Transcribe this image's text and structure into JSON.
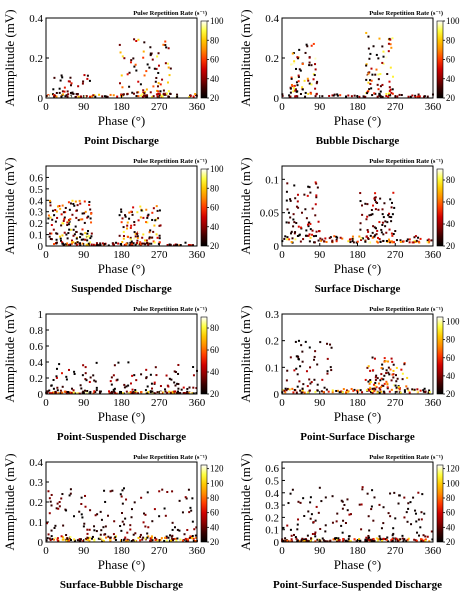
{
  "figure": {
    "colorbar_caption": "Pulse Repetition Rate (s⁻¹)",
    "colormap": [
      "#000000",
      "#3a0000",
      "#8c0000",
      "#d00000",
      "#ff3a00",
      "#ff8a00",
      "#ffc800",
      "#ffff40",
      "#ffffff"
    ]
  },
  "chart_data": [
    {
      "type": "scatter",
      "title": "Point Discharge",
      "xlabel": "Phase (°)",
      "ylabel": "Ammplitude (mV)",
      "xlim": [
        0,
        360
      ],
      "ylim": [
        0,
        0.4
      ],
      "xticks": [
        0,
        90,
        180,
        270,
        360
      ],
      "yticks": [
        0,
        0.2,
        0.4
      ],
      "ytick_labels": [
        "0",
        "0.2",
        "0.4"
      ],
      "colorbar": {
        "label": "Pulse Repetition Rate (s⁻¹)",
        "min": 20,
        "ticks": [
          20,
          40,
          60,
          80,
          100
        ],
        "max": 100
      },
      "clusters": [
        {
          "phase": [
            0,
            360
          ],
          "amplitude": [
            0.005,
            0.02
          ],
          "points": 90,
          "rate": [
            20,
            100
          ]
        },
        {
          "phase": [
            15,
            110
          ],
          "amplitude": [
            0.02,
            0.12
          ],
          "points": 30,
          "rate": [
            20,
            60
          ]
        },
        {
          "phase": [
            175,
            300
          ],
          "amplitude": [
            0.02,
            0.3
          ],
          "points": 85,
          "rate": [
            20,
            100
          ]
        }
      ]
    },
    {
      "type": "scatter",
      "title": "Bubble Discharge",
      "xlabel": "Phase (°)",
      "ylabel": "Ammplitude (mV)",
      "xlim": [
        0,
        360
      ],
      "ylim": [
        0,
        0.4
      ],
      "xticks": [
        0,
        90,
        180,
        270,
        360
      ],
      "yticks": [
        0,
        0.2,
        0.4
      ],
      "ytick_labels": [
        "0",
        "0.2",
        "0.4"
      ],
      "colorbar": {
        "label": "Pulse Repetition Rate (s⁻¹)",
        "min": 20,
        "ticks": [
          20,
          40,
          60,
          80,
          100
        ],
        "max": 100
      },
      "clusters": [
        {
          "phase": [
            0,
            360
          ],
          "amplitude": [
            0.005,
            0.02
          ],
          "points": 60,
          "rate": [
            20,
            60
          ]
        },
        {
          "phase": [
            20,
            85
          ],
          "amplitude": [
            0.02,
            0.28
          ],
          "points": 70,
          "rate": [
            20,
            100
          ]
        },
        {
          "phase": [
            200,
            265
          ],
          "amplitude": [
            0.02,
            0.33
          ],
          "points": 70,
          "rate": [
            20,
            100
          ]
        }
      ]
    },
    {
      "type": "scatter",
      "title": "Suspended Discharge",
      "xlabel": "Phase (°)",
      "ylabel": "Ammplitude (mV)",
      "xlim": [
        0,
        360
      ],
      "ylim": [
        0,
        0.7
      ],
      "xticks": [
        0,
        90,
        180,
        270,
        360
      ],
      "yticks": [
        0,
        0.1,
        0.2,
        0.3,
        0.4,
        0.5,
        0.6
      ],
      "ytick_labels": [
        "0",
        "0.1",
        "0.2",
        "0.3",
        "0.4",
        "0.5",
        "0.6"
      ],
      "colorbar": {
        "label": "Pulse Repetition Rate (s⁻¹)",
        "min": 20,
        "ticks": [
          20,
          40,
          60,
          80,
          100
        ],
        "max": 100
      },
      "clusters": [
        {
          "phase": [
            0,
            360
          ],
          "amplitude": [
            0.005,
            0.03
          ],
          "points": 80,
          "rate": [
            20,
            80
          ]
        },
        {
          "phase": [
            5,
            110
          ],
          "amplitude": [
            0.02,
            0.4
          ],
          "points": 130,
          "rate": [
            20,
            100
          ]
        },
        {
          "phase": [
            175,
            275
          ],
          "amplitude": [
            0.02,
            0.35
          ],
          "points": 100,
          "rate": [
            20,
            100
          ]
        }
      ]
    },
    {
      "type": "scatter",
      "title": "Surface Discharge",
      "xlabel": "Phase (°)",
      "ylabel": "Ammplitude (mV)",
      "xlim": [
        0,
        360
      ],
      "ylim": [
        0,
        0.12
      ],
      "xticks": [
        0,
        90,
        180,
        270,
        360
      ],
      "yticks": [
        0,
        0.05,
        0.1
      ],
      "ytick_labels": [
        "0",
        "0.05",
        "0.1"
      ],
      "colorbar": {
        "label": "Pulse Repetition Rate (s⁻¹)",
        "min": 20,
        "ticks": [
          20,
          40,
          60,
          80
        ],
        "max": 90
      },
      "clusters": [
        {
          "phase": [
            0,
            360
          ],
          "amplitude": [
            0.005,
            0.015
          ],
          "points": 110,
          "rate": [
            20,
            90
          ]
        },
        {
          "phase": [
            10,
            90
          ],
          "amplitude": [
            0.015,
            0.1
          ],
          "points": 65,
          "rate": [
            20,
            50
          ]
        },
        {
          "phase": [
            185,
            270
          ],
          "amplitude": [
            0.015,
            0.08
          ],
          "points": 65,
          "rate": [
            20,
            50
          ]
        }
      ]
    },
    {
      "type": "scatter",
      "title": "Point-Suspended Discharge",
      "xlabel": "Phase (°)",
      "ylabel": "Ammplitude (mV)",
      "xlim": [
        0,
        360
      ],
      "ylim": [
        0,
        1
      ],
      "xticks": [
        0,
        90,
        180,
        270,
        360
      ],
      "yticks": [
        0,
        0.2,
        0.4,
        0.6,
        0.8,
        1
      ],
      "ytick_labels": [
        "0",
        "0.2",
        "0.4",
        "0.6",
        "0.8",
        "1"
      ],
      "colorbar": {
        "label": "Pulse Repetition Rate (s⁻¹)",
        "min": 20,
        "ticks": [
          20,
          40,
          60,
          80
        ],
        "max": 90
      },
      "clusters": [
        {
          "phase": [
            0,
            360
          ],
          "amplitude": [
            0.005,
            0.03
          ],
          "points": 130,
          "rate": [
            20,
            90
          ]
        },
        {
          "phase": [
            0,
            360
          ],
          "amplitude": [
            0.03,
            0.4
          ],
          "points": 110,
          "rate": [
            20,
            50
          ]
        }
      ]
    },
    {
      "type": "scatter",
      "title": "Point-Surface Discharge",
      "xlabel": "Phase (°)",
      "ylabel": "Ammplitude (mV)",
      "xlim": [
        0,
        360
      ],
      "ylim": [
        0,
        0.3
      ],
      "xticks": [
        0,
        90,
        180,
        270,
        360
      ],
      "yticks": [
        0,
        0.1,
        0.2,
        0.3
      ],
      "ytick_labels": [
        "0",
        "0.1",
        "0.2",
        "0.3"
      ],
      "colorbar": {
        "label": "Pulse Repetition Rate (s⁻¹)",
        "min": 20,
        "ticks": [
          20,
          40,
          60,
          80,
          100
        ],
        "max": 105
      },
      "clusters": [
        {
          "phase": [
            0,
            360
          ],
          "amplitude": [
            0.005,
            0.02
          ],
          "points": 100,
          "rate": [
            20,
            100
          ]
        },
        {
          "phase": [
            10,
            120
          ],
          "amplitude": [
            0.02,
            0.2
          ],
          "points": 45,
          "rate": [
            20,
            50
          ]
        },
        {
          "phase": [
            195,
            300
          ],
          "amplitude": [
            0.02,
            0.14
          ],
          "points": 80,
          "rate": [
            20,
            100
          ]
        }
      ]
    },
    {
      "type": "scatter",
      "title": "Surface-Bubble Discharge",
      "xlabel": "Phase (°)",
      "ylabel": "Ammplitude (mV)",
      "xlim": [
        0,
        360
      ],
      "ylim": [
        0,
        0.4
      ],
      "xticks": [
        0,
        90,
        180,
        270,
        360
      ],
      "yticks": [
        0,
        0.1,
        0.2,
        0.3,
        0.4
      ],
      "ytick_labels": [
        "0",
        "0.1",
        "0.2",
        "0.3",
        "0.4"
      ],
      "colorbar": {
        "label": "Pulse Repetition Rate (s⁻¹)",
        "min": 20,
        "ticks": [
          20,
          40,
          60,
          80,
          100,
          120
        ],
        "max": 125
      },
      "clusters": [
        {
          "phase": [
            0,
            360
          ],
          "amplitude": [
            0.005,
            0.03
          ],
          "points": 140,
          "rate": [
            20,
            120
          ]
        },
        {
          "phase": [
            0,
            360
          ],
          "amplitude": [
            0.03,
            0.27
          ],
          "points": 120,
          "rate": [
            20,
            50
          ]
        }
      ]
    },
    {
      "type": "scatter",
      "title": "Point-Surface-Suspended Discharge",
      "xlabel": "Phase (°)",
      "ylabel": "Ammplitude (mV)",
      "xlim": [
        0,
        360
      ],
      "ylim": [
        0,
        0.65
      ],
      "xticks": [
        0,
        90,
        180,
        270,
        360
      ],
      "yticks": [
        0,
        0.1,
        0.2,
        0.3,
        0.4,
        0.5,
        0.6
      ],
      "ytick_labels": [
        "0",
        "0.1",
        "0.2",
        "0.3",
        "0.4",
        "0.5",
        "0.6"
      ],
      "colorbar": {
        "label": "Pulse Repetition Rate (s⁻¹)",
        "min": 20,
        "ticks": [
          20,
          40,
          60,
          80,
          100,
          120
        ],
        "max": 125
      },
      "clusters": [
        {
          "phase": [
            0,
            360
          ],
          "amplitude": [
            0.005,
            0.03
          ],
          "points": 150,
          "rate": [
            20,
            120
          ]
        },
        {
          "phase": [
            0,
            360
          ],
          "amplitude": [
            0.03,
            0.45
          ],
          "points": 120,
          "rate": [
            20,
            50
          ]
        }
      ]
    }
  ]
}
